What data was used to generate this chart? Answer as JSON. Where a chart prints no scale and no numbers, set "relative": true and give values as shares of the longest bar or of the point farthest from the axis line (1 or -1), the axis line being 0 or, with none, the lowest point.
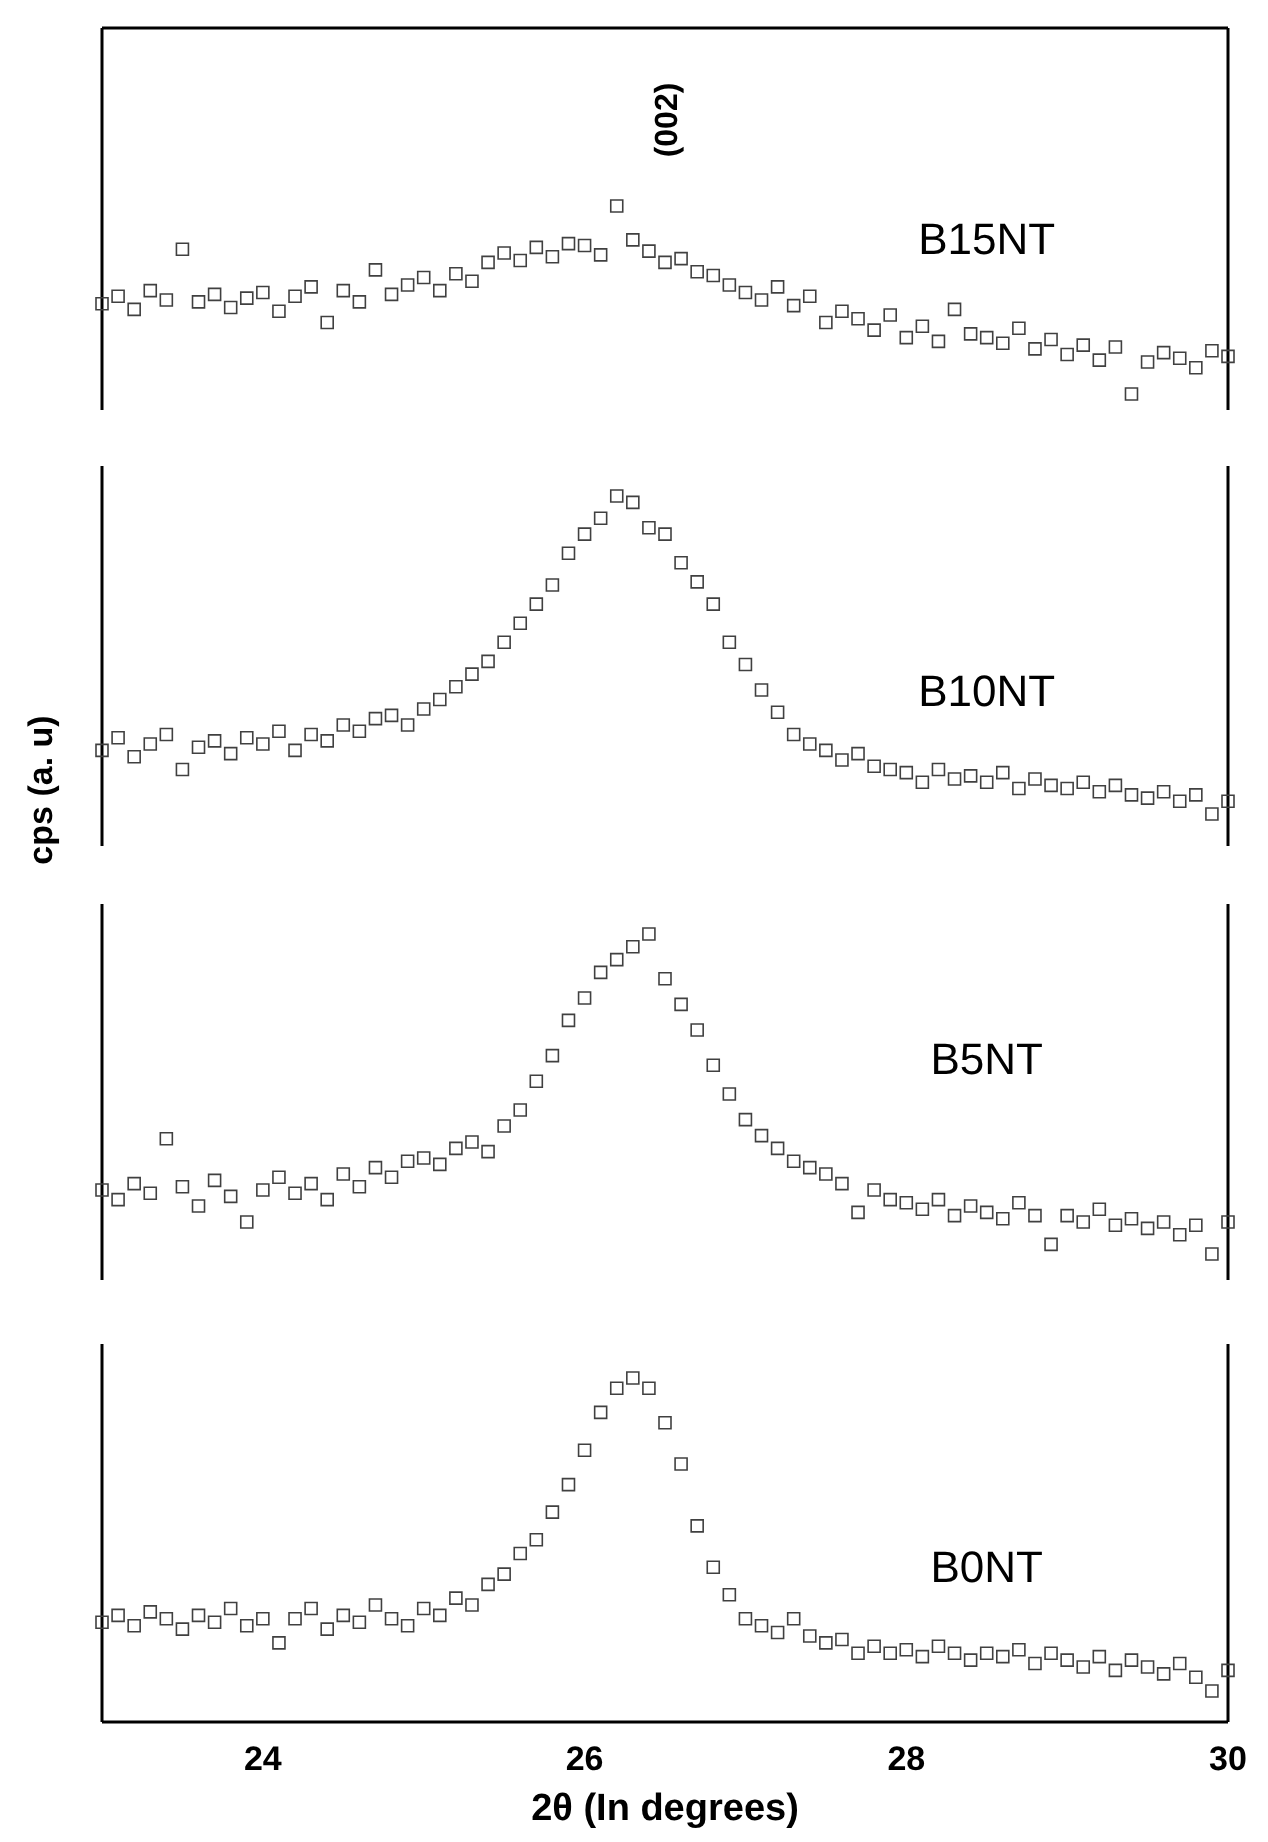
{
  "chart_data": [
    {
      "type": "scatter",
      "relative": true,
      "marker": "square",
      "xlim": [
        23,
        30
      ],
      "tick_labels": false,
      "annotations": [
        "(002)"
      ],
      "x": [
        23.0,
        23.1,
        23.2,
        23.3,
        23.4,
        23.5,
        23.6,
        23.7,
        23.8,
        23.9,
        24.0,
        24.1,
        24.2,
        24.3,
        24.4,
        24.5,
        24.6,
        24.7,
        24.8,
        24.9,
        25.0,
        25.1,
        25.2,
        25.3,
        25.4,
        25.5,
        25.6,
        25.7,
        25.8,
        25.9,
        26.0,
        26.1,
        26.2,
        26.3,
        26.4,
        26.5,
        26.6,
        26.7,
        26.8,
        26.9,
        27.0,
        27.1,
        27.2,
        27.3,
        27.4,
        27.5,
        27.6,
        27.7,
        27.8,
        27.9,
        28.0,
        28.1,
        28.2,
        28.3,
        28.4,
        28.5,
        28.6,
        28.7,
        28.8,
        28.9,
        29.0,
        29.1,
        29.2,
        29.3,
        29.4,
        29.5,
        29.6,
        29.7,
        29.8,
        29.9,
        30.0
      ],
      "series": [
        {
          "name": "B15NT",
          "color": "#404040",
          "values": [
            0.48,
            0.52,
            0.45,
            0.55,
            0.5,
            0.77,
            0.49,
            0.53,
            0.46,
            0.51,
            0.54,
            0.44,
            0.52,
            0.57,
            0.38,
            0.55,
            0.49,
            0.66,
            0.53,
            0.58,
            0.62,
            0.55,
            0.64,
            0.6,
            0.7,
            0.75,
            0.71,
            0.78,
            0.73,
            0.8,
            0.79,
            0.74,
            1.0,
            0.82,
            0.76,
            0.7,
            0.72,
            0.65,
            0.63,
            0.58,
            0.54,
            0.5,
            0.57,
            0.47,
            0.52,
            0.38,
            0.44,
            0.4,
            0.34,
            0.42,
            0.3,
            0.36,
            0.28,
            0.45,
            0.32,
            0.3,
            0.27,
            0.35,
            0.24,
            0.29,
            0.21,
            0.26,
            0.18,
            0.25,
            0.0,
            0.17,
            0.22,
            0.19,
            0.14,
            0.23,
            0.2
          ]
        }
      ]
    },
    {
      "type": "scatter",
      "relative": true,
      "marker": "square",
      "xlim": [
        23,
        30
      ],
      "tick_labels": false,
      "ylabel": "cps (a. u)",
      "x": [
        23.0,
        23.1,
        23.2,
        23.3,
        23.4,
        23.5,
        23.6,
        23.7,
        23.8,
        23.9,
        24.0,
        24.1,
        24.2,
        24.3,
        24.4,
        24.5,
        24.6,
        24.7,
        24.8,
        24.9,
        25.0,
        25.1,
        25.2,
        25.3,
        25.4,
        25.5,
        25.6,
        25.7,
        25.8,
        25.9,
        26.0,
        26.1,
        26.2,
        26.3,
        26.4,
        26.5,
        26.6,
        26.7,
        26.8,
        26.9,
        27.0,
        27.1,
        27.2,
        27.3,
        27.4,
        27.5,
        27.6,
        27.7,
        27.8,
        27.9,
        28.0,
        28.1,
        28.2,
        28.3,
        28.4,
        28.5,
        28.6,
        28.7,
        28.8,
        28.9,
        29.0,
        29.1,
        29.2,
        29.3,
        29.4,
        29.5,
        29.6,
        29.7,
        29.8,
        29.9,
        30.0
      ],
      "series": [
        {
          "name": "B10NT",
          "color": "#404040",
          "values": [
            0.2,
            0.24,
            0.18,
            0.22,
            0.25,
            0.14,
            0.21,
            0.23,
            0.19,
            0.24,
            0.22,
            0.26,
            0.2,
            0.25,
            0.23,
            0.28,
            0.26,
            0.3,
            0.31,
            0.28,
            0.33,
            0.36,
            0.4,
            0.44,
            0.48,
            0.54,
            0.6,
            0.66,
            0.72,
            0.82,
            0.88,
            0.93,
            1.0,
            0.98,
            0.9,
            0.88,
            0.79,
            0.73,
            0.66,
            0.54,
            0.47,
            0.39,
            0.32,
            0.25,
            0.22,
            0.2,
            0.17,
            0.19,
            0.15,
            0.14,
            0.13,
            0.1,
            0.14,
            0.11,
            0.12,
            0.1,
            0.13,
            0.08,
            0.11,
            0.09,
            0.08,
            0.1,
            0.07,
            0.09,
            0.06,
            0.05,
            0.07,
            0.04,
            0.06,
            0.0,
            0.04
          ]
        }
      ]
    },
    {
      "type": "scatter",
      "relative": true,
      "marker": "square",
      "xlim": [
        23,
        30
      ],
      "tick_labels": false,
      "x": [
        23.0,
        23.1,
        23.2,
        23.3,
        23.4,
        23.5,
        23.6,
        23.7,
        23.8,
        23.9,
        24.0,
        24.1,
        24.2,
        24.3,
        24.4,
        24.5,
        24.6,
        24.7,
        24.8,
        24.9,
        25.0,
        25.1,
        25.2,
        25.3,
        25.4,
        25.5,
        25.6,
        25.7,
        25.8,
        25.9,
        26.0,
        26.1,
        26.2,
        26.3,
        26.4,
        26.5,
        26.6,
        26.7,
        26.8,
        26.9,
        27.0,
        27.1,
        27.2,
        27.3,
        27.4,
        27.5,
        27.6,
        27.7,
        27.8,
        27.9,
        28.0,
        28.1,
        28.2,
        28.3,
        28.4,
        28.5,
        28.6,
        28.7,
        28.8,
        28.9,
        29.0,
        29.1,
        29.2,
        29.3,
        29.4,
        29.5,
        29.6,
        29.7,
        29.8,
        29.9,
        30.0
      ],
      "series": [
        {
          "name": "B5NT",
          "color": "#404040",
          "values": [
            0.2,
            0.17,
            0.22,
            0.19,
            0.36,
            0.21,
            0.15,
            0.23,
            0.18,
            0.1,
            0.2,
            0.24,
            0.19,
            0.22,
            0.17,
            0.25,
            0.21,
            0.27,
            0.24,
            0.29,
            0.3,
            0.28,
            0.33,
            0.35,
            0.32,
            0.4,
            0.45,
            0.54,
            0.62,
            0.73,
            0.8,
            0.88,
            0.92,
            0.96,
            1.0,
            0.86,
            0.78,
            0.7,
            0.59,
            0.5,
            0.42,
            0.37,
            0.33,
            0.29,
            0.27,
            0.25,
            0.22,
            0.13,
            0.2,
            0.17,
            0.16,
            0.14,
            0.17,
            0.12,
            0.15,
            0.13,
            0.11,
            0.16,
            0.12,
            0.03,
            0.12,
            0.1,
            0.14,
            0.09,
            0.11,
            0.08,
            0.1,
            0.06,
            0.09,
            0.0,
            0.1
          ]
        }
      ]
    },
    {
      "type": "scatter",
      "relative": true,
      "marker": "square",
      "xlim": [
        23,
        30
      ],
      "xticks": [
        24,
        26,
        28,
        30
      ],
      "tick_labels": "x",
      "xlabel": "2θ (In degrees)",
      "x": [
        23.0,
        23.1,
        23.2,
        23.3,
        23.4,
        23.5,
        23.6,
        23.7,
        23.8,
        23.9,
        24.0,
        24.1,
        24.2,
        24.3,
        24.4,
        24.5,
        24.6,
        24.7,
        24.8,
        24.9,
        25.0,
        25.1,
        25.2,
        25.3,
        25.4,
        25.5,
        25.6,
        25.7,
        25.8,
        25.9,
        26.0,
        26.1,
        26.2,
        26.3,
        26.4,
        26.5,
        26.6,
        26.7,
        26.8,
        26.9,
        27.0,
        27.1,
        27.2,
        27.3,
        27.4,
        27.5,
        27.6,
        27.7,
        27.8,
        27.9,
        28.0,
        28.1,
        28.2,
        28.3,
        28.4,
        28.5,
        28.6,
        28.7,
        28.8,
        28.9,
        29.0,
        29.1,
        29.2,
        29.3,
        29.4,
        29.5,
        29.6,
        29.7,
        29.8,
        29.9,
        30.0
      ],
      "series": [
        {
          "name": "B0NT",
          "color": "#404040",
          "values": [
            0.29,
            0.31,
            0.28,
            0.32,
            0.3,
            0.27,
            0.31,
            0.29,
            0.33,
            0.28,
            0.3,
            0.23,
            0.3,
            0.33,
            0.27,
            0.31,
            0.29,
            0.34,
            0.3,
            0.28,
            0.33,
            0.31,
            0.36,
            0.34,
            0.4,
            0.43,
            0.49,
            0.53,
            0.61,
            0.69,
            0.79,
            0.9,
            0.97,
            1.0,
            0.97,
            0.87,
            0.75,
            0.57,
            0.45,
            0.37,
            0.3,
            0.28,
            0.26,
            0.3,
            0.25,
            0.23,
            0.24,
            0.2,
            0.22,
            0.2,
            0.21,
            0.19,
            0.22,
            0.2,
            0.18,
            0.2,
            0.19,
            0.21,
            0.17,
            0.2,
            0.18,
            0.16,
            0.19,
            0.15,
            0.18,
            0.16,
            0.14,
            0.17,
            0.13,
            0.09,
            0.15
          ]
        }
      ]
    }
  ]
}
